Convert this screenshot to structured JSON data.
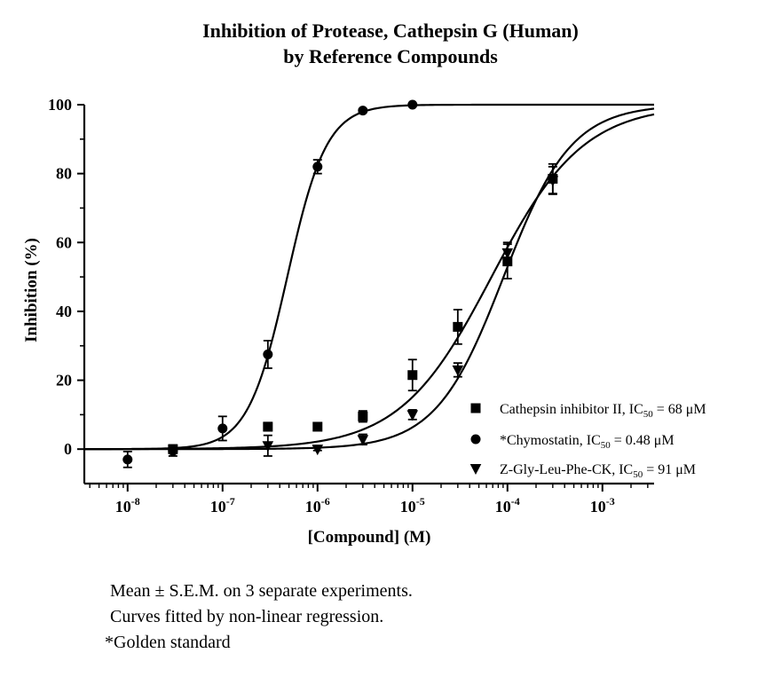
{
  "chart_data": {
    "type": "scatter",
    "title_lines": [
      "Inhibition of Protease, Cathepsin G (Human)",
      "by Reference Compounds"
    ],
    "xlabel": "[Compound] (M)",
    "ylabel": "Inhibition (%)",
    "xscale": "log",
    "xlim": [
      3.5e-09,
      0.0035
    ],
    "ylim": [
      -10,
      100
    ],
    "yticks": [
      0,
      20,
      40,
      60,
      80,
      100
    ],
    "xticks": [
      {
        "value": 1e-08,
        "base": "10",
        "exp": "-8"
      },
      {
        "value": 1e-07,
        "base": "10",
        "exp": "-7"
      },
      {
        "value": 1e-06,
        "base": "10",
        "exp": "-6"
      },
      {
        "value": 1e-05,
        "base": "10",
        "exp": "-5"
      },
      {
        "value": 0.0001,
        "base": "10",
        "exp": "-4"
      },
      {
        "value": 0.001,
        "base": "10",
        "exp": "-3"
      }
    ],
    "legend_position": "lower-right",
    "series": [
      {
        "name": "Cathepsin inhibitor II",
        "ic50_label": "68 μM",
        "marker": "square",
        "fit": {
          "bottom": 0,
          "top": 100,
          "ec50": 6.8e-05,
          "hill": 0.9
        },
        "points": [
          {
            "x": 3e-08,
            "y": 0,
            "err": 1.2
          },
          {
            "x": 3e-07,
            "y": 6.5,
            "err": 1.2
          },
          {
            "x": 1e-06,
            "y": 6.5,
            "err": 1.0
          },
          {
            "x": 3e-06,
            "y": 9.5,
            "err": 1.6
          },
          {
            "x": 1e-05,
            "y": 21.5,
            "err": 4.5
          },
          {
            "x": 3e-05,
            "y": 35.5,
            "err": 5.0
          },
          {
            "x": 0.0001,
            "y": 54.5,
            "err": 5.0
          },
          {
            "x": 0.0003,
            "y": 78.5,
            "err": 4.3
          }
        ]
      },
      {
        "name": "*Chymostatin",
        "ic50_label": "0.48 μM",
        "marker": "circle",
        "fit": {
          "bottom": 0,
          "top": 100,
          "ec50": 4.8e-07,
          "hill": 2.1
        },
        "points": [
          {
            "x": 1e-08,
            "y": -3,
            "err": 2.3
          },
          {
            "x": 3e-08,
            "y": -0.5,
            "err": 1.5
          },
          {
            "x": 1e-07,
            "y": 6,
            "err": 3.5
          },
          {
            "x": 3e-07,
            "y": 27.5,
            "err": 4.0
          },
          {
            "x": 1e-06,
            "y": 82,
            "err": 2.0
          },
          {
            "x": 3e-06,
            "y": 98.3,
            "err": 0.5
          },
          {
            "x": 1e-05,
            "y": 100,
            "err": 0
          }
        ]
      },
      {
        "name": "Z-Gly-Leu-Phe-CK",
        "ic50_label": "91 μM",
        "marker": "triangle-down",
        "fit": {
          "bottom": 0,
          "top": 100,
          "ec50": 9.1e-05,
          "hill": 1.22
        },
        "points": [
          {
            "x": 3e-07,
            "y": 1,
            "err": 3.0
          },
          {
            "x": 1e-06,
            "y": 0,
            "err": 0.4
          },
          {
            "x": 3e-06,
            "y": 2.8,
            "err": 1.5
          },
          {
            "x": 1e-05,
            "y": 10,
            "err": 1.4
          },
          {
            "x": 3e-05,
            "y": 23,
            "err": 2.0
          },
          {
            "x": 0.0001,
            "y": 57,
            "err": 3.0
          },
          {
            "x": 0.0003,
            "y": 78,
            "err": 4.0
          }
        ]
      }
    ],
    "legend_ic_prefix": "IC",
    "legend_ic_sub": "50",
    "notes": [
      "Mean ± S.E.M. on 3 separate experiments.",
      "Curves fitted by non-linear regression.",
      "*Golden standard"
    ]
  }
}
